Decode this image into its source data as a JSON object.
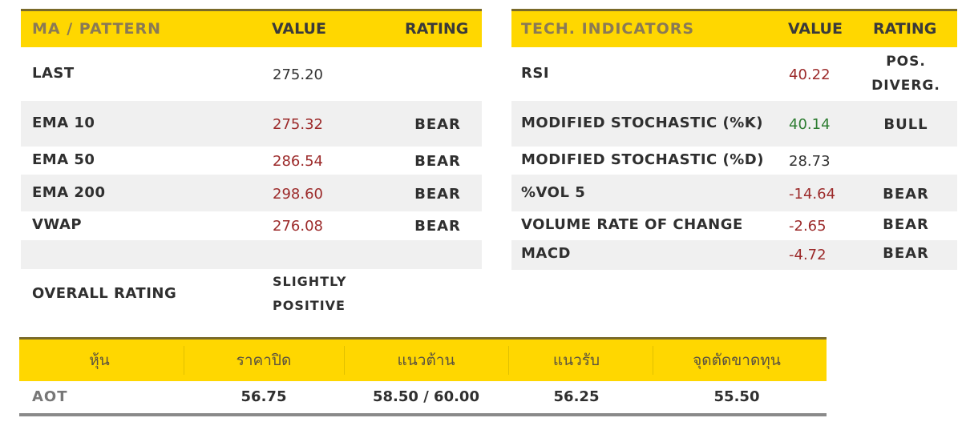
{
  "ma_table": {
    "headers": {
      "name": "MA / PATTERN",
      "value": "VALUE",
      "rating": "RATING"
    },
    "rows": [
      {
        "name": "LAST",
        "value": "275.20",
        "rating": ""
      },
      {
        "name": "EMA 10",
        "value": "275.32",
        "rating": "BEAR"
      },
      {
        "name": "EMA 50",
        "value": "286.54",
        "rating": "BEAR"
      },
      {
        "name": "EMA 200",
        "value": "298.60",
        "rating": "BEAR"
      },
      {
        "name": "VWAP",
        "value": "276.08",
        "rating": "BEAR"
      }
    ],
    "overall": {
      "label": "OVERALL RATING",
      "value_line1": "SLIGHTLY",
      "value_line2": "POSITIVE"
    }
  },
  "tech_table": {
    "headers": {
      "name": "TECH. INDICATORS",
      "value": "VALUE",
      "rating": "RATING"
    },
    "rows": [
      {
        "name": "RSI",
        "value": "40.22",
        "rating_line1": "POS.",
        "rating_line2": "DIVERG."
      },
      {
        "name": "MODIFIED STOCHASTIC (%K)",
        "value": "40.14",
        "rating": "BULL"
      },
      {
        "name": "MODIFIED STOCHASTIC (%D)",
        "value": "28.73",
        "rating": ""
      },
      {
        "name": "%VOL 5",
        "value": "-14.64",
        "rating": "BEAR"
      },
      {
        "name": "VOLUME RATE OF CHANGE",
        "value": "-2.65",
        "rating": "BEAR"
      },
      {
        "name": "MACD",
        "value": "-4.72",
        "rating": "BEAR"
      }
    ]
  },
  "stock_table": {
    "headers": {
      "stock": "หุ้น",
      "close": "ราคาปิด",
      "resistance": "แนวต้าน",
      "support": "แนวรับ",
      "stoploss": "จุดตัดขาดทุน"
    },
    "row": {
      "stock": "AOT",
      "close": "56.75",
      "resistance": "58.50 / 60.00",
      "support": "56.25",
      "stoploss": "55.50"
    }
  },
  "colors": {
    "header_yellow": "#ffd700",
    "negative": "#9c2a2a",
    "positive": "#2e7d32"
  }
}
